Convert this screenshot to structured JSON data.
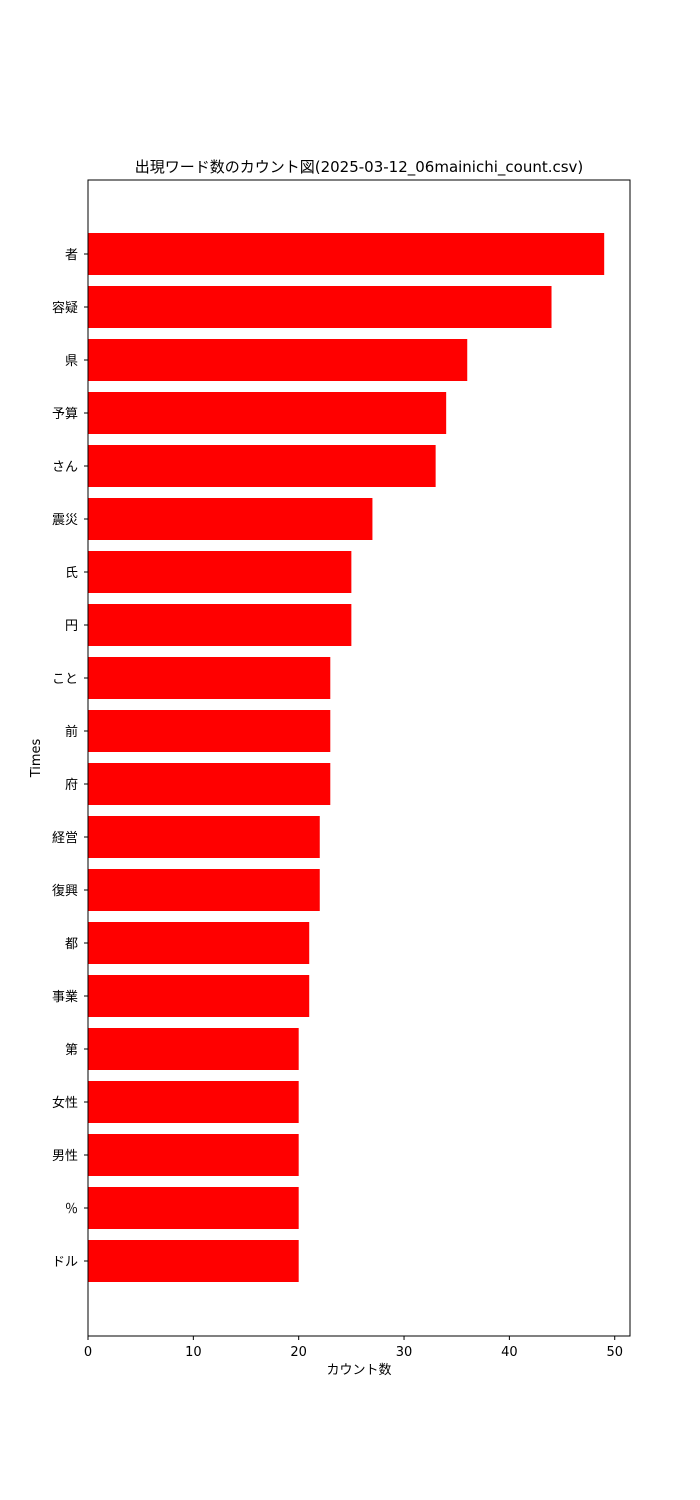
{
  "chart_data": {
    "type": "bar",
    "orientation": "horizontal",
    "title": "出現ワード数のカウント図(2025-03-12_06mainichi_count.csv)",
    "xlabel": "カウント数",
    "ylabel": "Times",
    "xlim": [
      0,
      51.45
    ],
    "xticks": [
      0,
      10,
      20,
      30,
      40,
      50
    ],
    "grid": false,
    "bar_color": "#ff0000",
    "categories": [
      "者",
      "容疑",
      "県",
      "予算",
      "さん",
      "震災",
      "氏",
      "円",
      "こと",
      "前",
      "府",
      "経営",
      "復興",
      "都",
      "事業",
      "第",
      "女性",
      "男性",
      "％",
      "ドル"
    ],
    "values": [
      49,
      44,
      36,
      34,
      33,
      27,
      25,
      25,
      23,
      23,
      23,
      22,
      22,
      21,
      21,
      20,
      20,
      20,
      20,
      20
    ]
  }
}
